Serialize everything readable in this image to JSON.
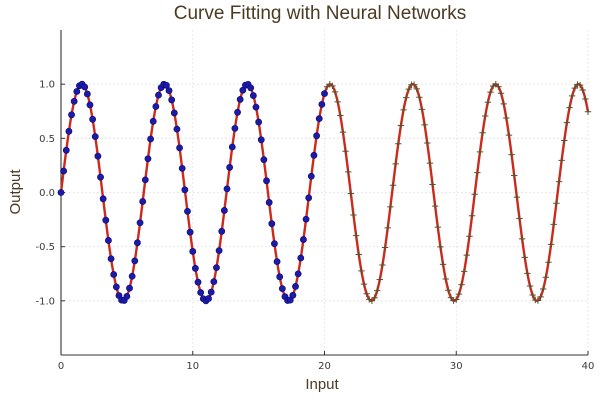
{
  "chart_data": {
    "type": "line",
    "title": "Curve Fitting with Neural Networks",
    "xlabel": "Input",
    "ylabel": "Output",
    "xlim": [
      0,
      40
    ],
    "ylim": [
      -1.5,
      1.5
    ],
    "xticks": [
      0,
      10,
      20,
      30,
      40
    ],
    "xtick_labels": [
      "0",
      "10",
      "20",
      "30",
      "40"
    ],
    "yticks": [
      -1.0,
      -0.5,
      0.0,
      0.5,
      1.0
    ],
    "ytick_labels": [
      "-1.0",
      "-0.5",
      "0.0",
      "0.5",
      "1.0"
    ],
    "grid": true,
    "legend": "none",
    "function": "sin(x)",
    "series": [
      {
        "kind": "line",
        "x_range": [
          0,
          40
        ],
        "samples": 600,
        "color": "#cc2a1a"
      },
      {
        "kind": "scatter",
        "marker": "circle",
        "x_range": [
          0,
          20
        ],
        "step": 0.2,
        "color": "#1c1aa8"
      },
      {
        "kind": "scatter",
        "marker": "cross",
        "x_range": [
          20.2,
          40
        ],
        "step": 0.2,
        "color": "#5a5230"
      }
    ],
    "colors": {
      "axis": "#333333",
      "grid": "#d9d9d9",
      "text": "#4a3b22"
    }
  }
}
